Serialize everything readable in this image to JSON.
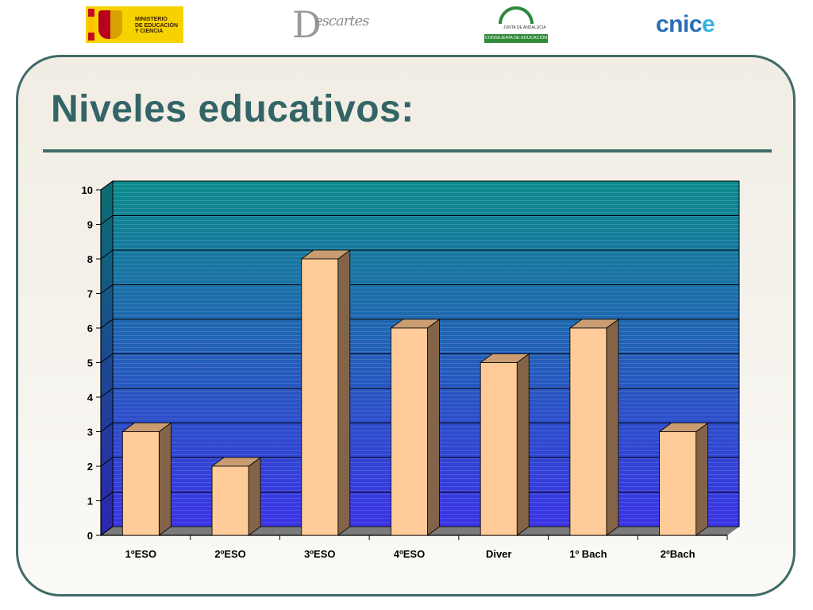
{
  "header": {
    "logos": {
      "ministerio": "MINISTERIO\nDE EDUCACIÓN\nY CIENCIA",
      "descartes_initial": "D",
      "descartes_word": "escartes",
      "junta_sub": "JUNTA DE ANDALUCIA",
      "junta_band": "CONSEJERÍA DE EDUCACIÓN",
      "cnice_main": "cnic",
      "cnice_accent": "e"
    }
  },
  "slide": {
    "title": "Niveles educativos:"
  },
  "colors": {
    "accent": "#336566",
    "bar_front": "#ffcc99",
    "bar_top": "#c99c72",
    "bar_side": "#846448",
    "wall_top": "#0c8b8b",
    "wall_bottom": "#3a33e6"
  },
  "chart_data": {
    "type": "bar",
    "style": "3d",
    "categories": [
      "1ºESO",
      "2ºESO",
      "3ºESO",
      "4ºESO",
      "Diver",
      "1º Bach",
      "2ºBach"
    ],
    "values": [
      3,
      2,
      8,
      6,
      5,
      6,
      3
    ],
    "yticks": [
      0,
      1,
      2,
      3,
      4,
      5,
      6,
      7,
      8,
      9,
      10
    ],
    "ylim": [
      0,
      10
    ],
    "title": "",
    "xlabel": "",
    "ylabel": "",
    "grid": true,
    "legend": false
  }
}
